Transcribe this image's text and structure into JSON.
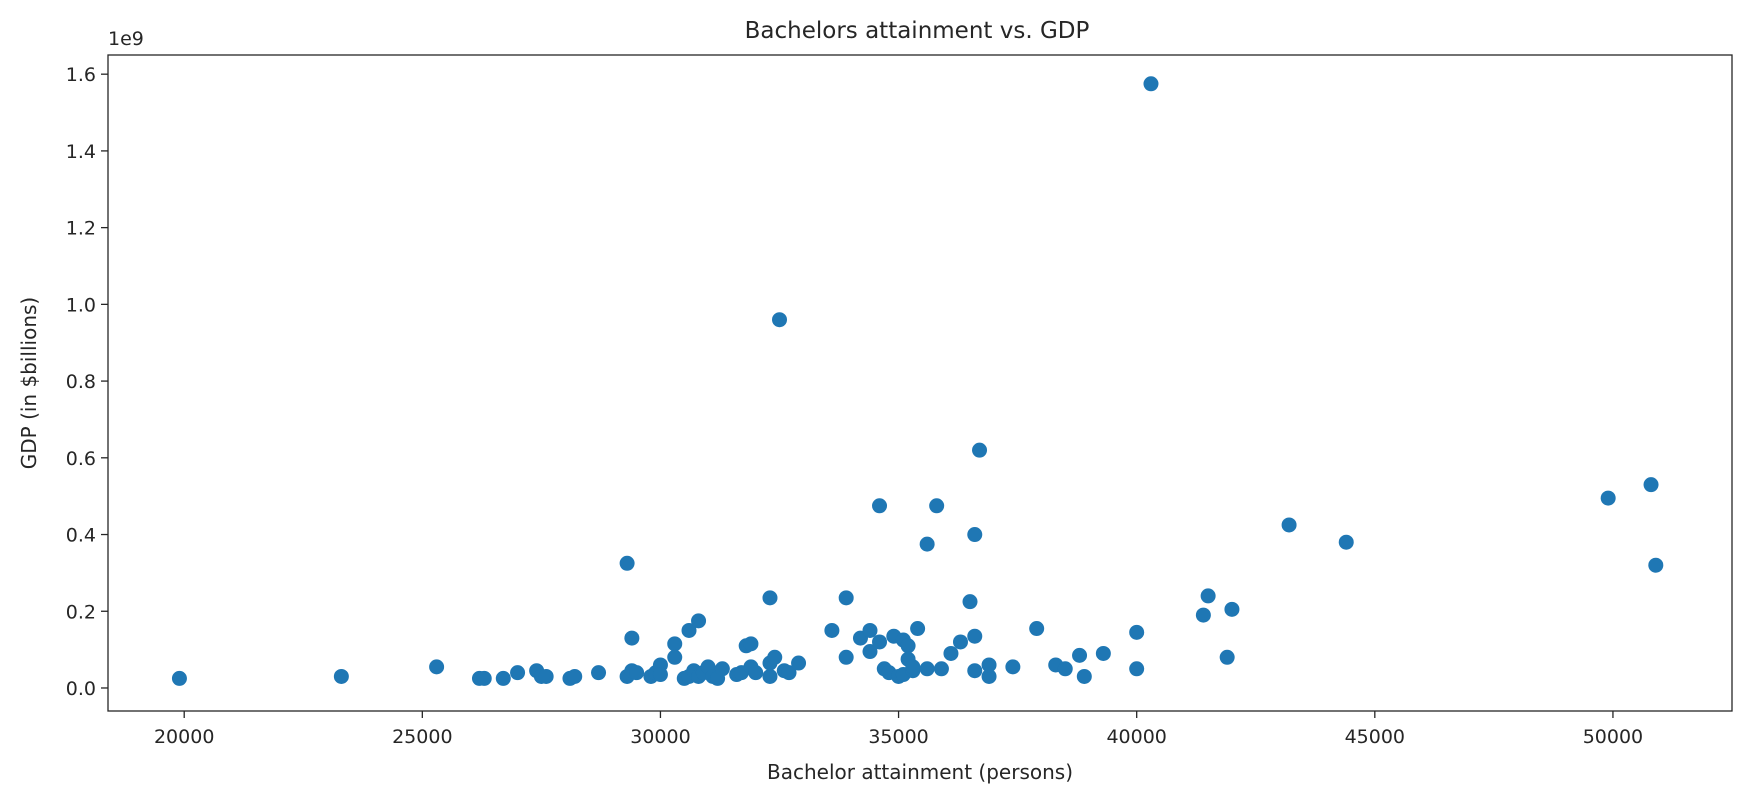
{
  "chart_data": {
    "type": "scatter",
    "title": "Bachelors attainment vs. GDP",
    "xlabel": "Bachelor attainment (persons)",
    "ylabel": "GDP (in $billions)",
    "y_offset_label": "1e9",
    "xlim": [
      18400,
      52500
    ],
    "ylim": [
      -0.06,
      1.65
    ],
    "x_ticks": [
      20000,
      25000,
      30000,
      35000,
      40000,
      45000,
      50000
    ],
    "x_tick_labels": [
      "20000",
      "25000",
      "30000",
      "35000",
      "40000",
      "45000",
      "50000"
    ],
    "y_ticks": [
      0.0,
      0.2,
      0.4,
      0.6,
      0.8,
      1.0,
      1.2,
      1.4,
      1.6
    ],
    "y_tick_labels": [
      "0.0",
      "0.2",
      "0.4",
      "0.6",
      "0.8",
      "1.0",
      "1.2",
      "1.4",
      "1.6"
    ],
    "grid": false,
    "marker_color": "#1f77b4",
    "series": [
      {
        "points": [
          [
            19900,
            0.025
          ],
          [
            23300,
            0.03
          ],
          [
            25300,
            0.055
          ],
          [
            26200,
            0.025
          ],
          [
            26300,
            0.025
          ],
          [
            26700,
            0.025
          ],
          [
            27000,
            0.04
          ],
          [
            27400,
            0.045
          ],
          [
            27500,
            0.03
          ],
          [
            27600,
            0.03
          ],
          [
            28100,
            0.025
          ],
          [
            28200,
            0.03
          ],
          [
            28700,
            0.04
          ],
          [
            29300,
            0.325
          ],
          [
            29300,
            0.03
          ],
          [
            29400,
            0.13
          ],
          [
            29400,
            0.045
          ],
          [
            29500,
            0.04
          ],
          [
            29800,
            0.03
          ],
          [
            29900,
            0.04
          ],
          [
            30000,
            0.06
          ],
          [
            30000,
            0.035
          ],
          [
            30300,
            0.115
          ],
          [
            30300,
            0.08
          ],
          [
            30500,
            0.025
          ],
          [
            30600,
            0.03
          ],
          [
            30600,
            0.15
          ],
          [
            30700,
            0.045
          ],
          [
            30800,
            0.175
          ],
          [
            30800,
            0.03
          ],
          [
            30900,
            0.04
          ],
          [
            31000,
            0.055
          ],
          [
            31100,
            0.03
          ],
          [
            31200,
            0.025
          ],
          [
            31300,
            0.05
          ],
          [
            31600,
            0.035
          ],
          [
            31700,
            0.04
          ],
          [
            31800,
            0.11
          ],
          [
            31900,
            0.115
          ],
          [
            31900,
            0.055
          ],
          [
            32000,
            0.04
          ],
          [
            32300,
            0.235
          ],
          [
            32300,
            0.03
          ],
          [
            32300,
            0.065
          ],
          [
            32400,
            0.08
          ],
          [
            32500,
            0.96
          ],
          [
            32600,
            0.045
          ],
          [
            32700,
            0.04
          ],
          [
            32900,
            0.065
          ],
          [
            33600,
            0.15
          ],
          [
            33900,
            0.235
          ],
          [
            33900,
            0.08
          ],
          [
            34200,
            0.13
          ],
          [
            34400,
            0.15
          ],
          [
            34400,
            0.095
          ],
          [
            34600,
            0.475
          ],
          [
            34600,
            0.12
          ],
          [
            34700,
            0.05
          ],
          [
            34800,
            0.04
          ],
          [
            34900,
            0.135
          ],
          [
            35000,
            0.03
          ],
          [
            35100,
            0.125
          ],
          [
            35100,
            0.035
          ],
          [
            35200,
            0.11
          ],
          [
            35200,
            0.075
          ],
          [
            35300,
            0.045
          ],
          [
            35300,
            0.055
          ],
          [
            35400,
            0.155
          ],
          [
            35600,
            0.375
          ],
          [
            35600,
            0.05
          ],
          [
            35800,
            0.475
          ],
          [
            35900,
            0.05
          ],
          [
            36100,
            0.09
          ],
          [
            36300,
            0.12
          ],
          [
            36500,
            0.225
          ],
          [
            36600,
            0.135
          ],
          [
            36600,
            0.4
          ],
          [
            36600,
            0.045
          ],
          [
            36700,
            0.62
          ],
          [
            36900,
            0.03
          ],
          [
            36900,
            0.06
          ],
          [
            37400,
            0.055
          ],
          [
            37900,
            0.155
          ],
          [
            38300,
            0.06
          ],
          [
            38500,
            0.05
          ],
          [
            38800,
            0.085
          ],
          [
            38900,
            0.03
          ],
          [
            39300,
            0.09
          ],
          [
            40000,
            0.145
          ],
          [
            40000,
            0.05
          ],
          [
            40300,
            1.575
          ],
          [
            41400,
            0.19
          ],
          [
            41500,
            0.24
          ],
          [
            41900,
            0.08
          ],
          [
            42000,
            0.205
          ],
          [
            43200,
            0.425
          ],
          [
            44400,
            0.38
          ],
          [
            49900,
            0.495
          ],
          [
            50800,
            0.53
          ],
          [
            50900,
            0.32
          ]
        ]
      }
    ]
  }
}
